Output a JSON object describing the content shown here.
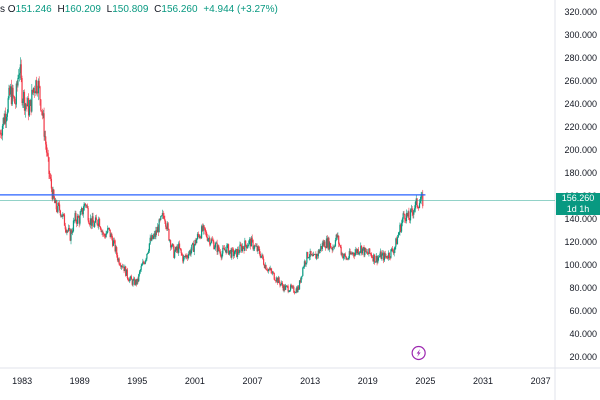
{
  "legend": {
    "lead": "s",
    "open_label": "O",
    "open_value": "151.246",
    "high_label": "H",
    "high_value": "160.209",
    "low_label": "L",
    "low_value": "150.809",
    "close_label": "C",
    "close_value": "156.260",
    "change": "+4.944 (+3.27%)"
  },
  "last_price": {
    "value": "156.260",
    "countdown": "1d 1h"
  },
  "colors": {
    "up": "#089981",
    "down": "#f23645",
    "level_line": "#2962ff",
    "price_line": "#089981",
    "badge": "#9c27b0"
  },
  "event_badge_icon": "lightning-icon",
  "chart_data": {
    "type": "line",
    "title": "",
    "xlabel": "",
    "ylabel": "",
    "y_range": [
      20,
      320
    ],
    "x_range": [
      1980.7,
      2038.5
    ],
    "y_ticks": [
      "20.000",
      "40.000",
      "60.000",
      "80.000",
      "100.000",
      "120.000",
      "140.000",
      "160.000",
      "180.000",
      "200.000",
      "220.000",
      "240.000",
      "260.000",
      "280.000",
      "300.000",
      "320.000"
    ],
    "x_ticks": [
      "1983",
      "1989",
      "1995",
      "2001",
      "2007",
      "2013",
      "2019",
      "2025",
      "2031",
      "2037"
    ],
    "horizontal_level": 161,
    "series": [
      {
        "x": [
          1980.7,
          1981.2,
          1981.8,
          1982.3,
          1982.7,
          1983.0,
          1983.4,
          1983.8,
          1984.2,
          1984.6,
          1985.0,
          1985.4,
          1985.8,
          1986.2,
          1986.5,
          1987.0,
          1987.5,
          1988.0,
          1988.5,
          1989.0,
          1989.6,
          1990.0,
          1990.5,
          1991.0,
          1991.5,
          1992.0,
          1992.5,
          1993.0,
          1993.5,
          1994.0,
          1994.5,
          1995.0,
          1995.3,
          1995.8,
          1996.3,
          1996.8,
          1997.3,
          1997.8,
          1998.3,
          1998.8,
          1999.3,
          1999.8,
          2000.3,
          2000.8,
          2001.3,
          2001.8,
          2002.3,
          2002.8,
          2003.3,
          2003.8,
          2004.3,
          2004.8,
          2005.3,
          2005.8,
          2006.3,
          2006.8,
          2007.3,
          2007.8,
          2008.3,
          2008.8,
          2009.3,
          2009.8,
          2010.3,
          2010.8,
          2011.3,
          2011.8,
          2012.3,
          2012.8,
          2013.3,
          2013.8,
          2014.3,
          2014.8,
          2015.3,
          2015.8,
          2016.3,
          2016.8,
          2017.3,
          2017.8,
          2018.3,
          2018.8,
          2019.3,
          2019.8,
          2020.3,
          2020.8,
          2021.3,
          2021.8,
          2022.3,
          2022.8,
          2023.3,
          2023.8,
          2024.3,
          2024.8
        ],
        "y": [
          215,
          230,
          250,
          240,
          275,
          250,
          240,
          235,
          255,
          260,
          240,
          210,
          180,
          160,
          150,
          148,
          135,
          125,
          140,
          140,
          155,
          140,
          135,
          140,
          125,
          130,
          120,
          105,
          100,
          90,
          85,
          85,
          95,
          105,
          120,
          125,
          135,
          145,
          125,
          110,
          115,
          105,
          110,
          115,
          125,
          130,
          125,
          120,
          115,
          110,
          115,
          110,
          110,
          115,
          118,
          120,
          115,
          110,
          100,
          95,
          90,
          85,
          80,
          80,
          78,
          80,
          100,
          110,
          105,
          110,
          118,
          120,
          115,
          125,
          110,
          105,
          110,
          112,
          115,
          110,
          110,
          105,
          108,
          107,
          110,
          115,
          130,
          145,
          140,
          150,
          155,
          156
        ]
      }
    ]
  }
}
